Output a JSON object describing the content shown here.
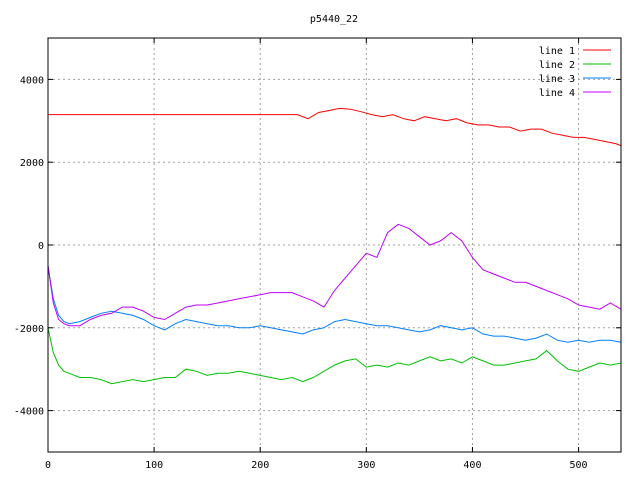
{
  "chart_data": {
    "type": "line",
    "title": "p5440_22",
    "xlabel": "",
    "ylabel": "",
    "xlim": [
      0,
      540
    ],
    "ylim": [
      -5000,
      5000
    ],
    "xticks": [
      0,
      100,
      200,
      300,
      400,
      500
    ],
    "yticks": [
      -4000,
      -2000,
      0,
      2000,
      4000
    ],
    "grid": true,
    "legend_position": "top-right",
    "series": [
      {
        "name": "line 1",
        "color": "#ff0000",
        "x": [
          0,
          10,
          50,
          100,
          150,
          200,
          235,
          245,
          255,
          265,
          275,
          285,
          295,
          305,
          315,
          325,
          335,
          345,
          355,
          365,
          375,
          385,
          395,
          405,
          415,
          425,
          435,
          445,
          455,
          465,
          475,
          485,
          495,
          505,
          515,
          525,
          535,
          540
        ],
        "values": [
          3150,
          3150,
          3150,
          3150,
          3150,
          3150,
          3150,
          3050,
          3200,
          3250,
          3300,
          3280,
          3220,
          3150,
          3100,
          3150,
          3050,
          3000,
          3100,
          3050,
          3000,
          3050,
          2950,
          2900,
          2900,
          2850,
          2850,
          2750,
          2800,
          2800,
          2700,
          2650,
          2600,
          2600,
          2550,
          2500,
          2450,
          2400
        ]
      },
      {
        "name": "line 2",
        "color": "#00c000",
        "x": [
          0,
          5,
          10,
          15,
          20,
          30,
          40,
          50,
          60,
          70,
          80,
          90,
          100,
          110,
          120,
          130,
          140,
          150,
          160,
          170,
          180,
          190,
          200,
          210,
          220,
          230,
          240,
          250,
          260,
          270,
          280,
          290,
          300,
          310,
          320,
          330,
          340,
          350,
          360,
          370,
          380,
          390,
          400,
          410,
          420,
          430,
          440,
          450,
          460,
          470,
          480,
          490,
          500,
          510,
          520,
          530,
          540
        ],
        "values": [
          -2000,
          -2600,
          -2900,
          -3050,
          -3100,
          -3200,
          -3200,
          -3250,
          -3350,
          -3300,
          -3250,
          -3300,
          -3250,
          -3200,
          -3200,
          -3000,
          -3050,
          -3150,
          -3100,
          -3100,
          -3050,
          -3100,
          -3150,
          -3200,
          -3250,
          -3200,
          -3300,
          -3200,
          -3050,
          -2900,
          -2800,
          -2750,
          -2950,
          -2900,
          -2950,
          -2850,
          -2900,
          -2800,
          -2700,
          -2800,
          -2750,
          -2850,
          -2700,
          -2800,
          -2900,
          -2900,
          -2850,
          -2800,
          -2750,
          -2550,
          -2800,
          -3000,
          -3050,
          -2950,
          -2850,
          -2900,
          -2850
        ]
      },
      {
        "name": "line 3",
        "color": "#0080ff",
        "x": [
          0,
          5,
          10,
          15,
          20,
          30,
          40,
          50,
          60,
          70,
          80,
          90,
          100,
          110,
          120,
          130,
          140,
          150,
          160,
          170,
          180,
          190,
          200,
          210,
          220,
          230,
          240,
          250,
          260,
          270,
          280,
          290,
          300,
          310,
          320,
          330,
          340,
          350,
          360,
          370,
          380,
          390,
          400,
          410,
          420,
          430,
          440,
          450,
          460,
          470,
          480,
          490,
          500,
          510,
          520,
          530,
          540
        ],
        "values": [
          -500,
          -1300,
          -1700,
          -1850,
          -1900,
          -1850,
          -1750,
          -1650,
          -1600,
          -1650,
          -1700,
          -1800,
          -1950,
          -2050,
          -1900,
          -1800,
          -1850,
          -1900,
          -1950,
          -1950,
          -2000,
          -2000,
          -1950,
          -2000,
          -2050,
          -2100,
          -2150,
          -2050,
          -2000,
          -1850,
          -1800,
          -1850,
          -1900,
          -1950,
          -1950,
          -2000,
          -2050,
          -2100,
          -2050,
          -1950,
          -2000,
          -2050,
          -2000,
          -2150,
          -2200,
          -2200,
          -2250,
          -2300,
          -2250,
          -2150,
          -2300,
          -2350,
          -2300,
          -2350,
          -2300,
          -2300,
          -2350
        ]
      },
      {
        "name": "line 4",
        "color": "#c000ff",
        "x": [
          0,
          5,
          10,
          15,
          20,
          30,
          40,
          50,
          60,
          70,
          80,
          90,
          100,
          110,
          120,
          130,
          140,
          150,
          160,
          170,
          180,
          190,
          200,
          210,
          220,
          230,
          240,
          250,
          260,
          270,
          280,
          290,
          300,
          310,
          320,
          330,
          340,
          350,
          360,
          370,
          380,
          390,
          400,
          410,
          420,
          430,
          440,
          450,
          460,
          470,
          480,
          490,
          500,
          510,
          520,
          530,
          540
        ],
        "values": [
          -500,
          -1400,
          -1800,
          -1900,
          -1950,
          -1950,
          -1800,
          -1700,
          -1650,
          -1500,
          -1500,
          -1600,
          -1750,
          -1800,
          -1650,
          -1500,
          -1450,
          -1450,
          -1400,
          -1350,
          -1300,
          -1250,
          -1200,
          -1150,
          -1150,
          -1150,
          -1250,
          -1350,
          -1500,
          -1100,
          -800,
          -500,
          -200,
          -300,
          300,
          500,
          400,
          200,
          0,
          100,
          300,
          100,
          -300,
          -600,
          -700,
          -800,
          -900,
          -900,
          -1000,
          -1100,
          -1200,
          -1300,
          -1450,
          -1500,
          -1550,
          -1400,
          -1550
        ]
      }
    ]
  }
}
